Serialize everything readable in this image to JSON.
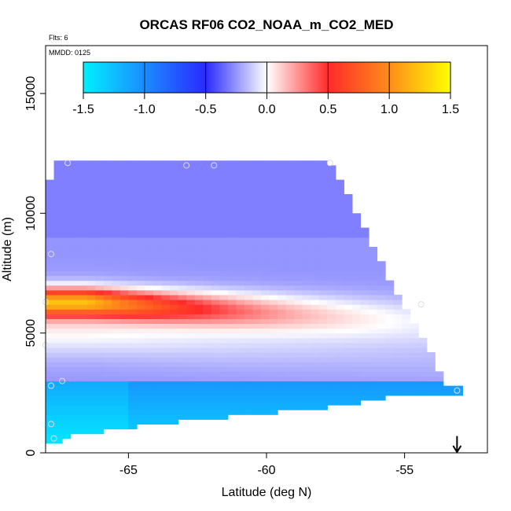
{
  "chart_data": {
    "type": "heatmap",
    "title": "ORCAS RF06 CO2_NOAA_m_CO2_MED",
    "subtitle_flts": "Flts: 6",
    "subtitle_mmdd": "MMDD: 0125",
    "xlabel": "Latitude (deg N)",
    "ylabel": "Altitude (m)",
    "xlim": [
      -68,
      -52
    ],
    "ylim": [
      0,
      17000
    ],
    "x_ticks": [
      -65,
      -60,
      -55
    ],
    "x_tick_labels": [
      "-65",
      "-60",
      "-55"
    ],
    "y_ticks": [
      0,
      5000,
      10000,
      15000
    ],
    "y_tick_labels": [
      "0",
      "5000",
      "10000",
      "15000"
    ],
    "colorbar": {
      "min": -1.5,
      "max": 1.5,
      "ticks": [
        -1.5,
        -1.0,
        -0.5,
        0.0,
        0.5,
        1.0,
        1.5
      ],
      "tick_labels": [
        "-1.5",
        "-1.0",
        "-0.5",
        "0.0",
        "0.5",
        "1.0",
        "1.5"
      ],
      "stops": [
        {
          "v": -1.5,
          "c": "#00f0ff"
        },
        {
          "v": -1.0,
          "c": "#1a8cff"
        },
        {
          "v": -0.5,
          "c": "#2a2aff"
        },
        {
          "v": 0.0,
          "c": "#ffffff"
        },
        {
          "v": 0.5,
          "c": "#ff2a2a"
        },
        {
          "v": 1.0,
          "c": "#ff8c1a"
        },
        {
          "v": 1.5,
          "c": "#ffff00"
        }
      ]
    },
    "field": {
      "lat_range": [
        -68,
        -52.9
      ],
      "alt_range": [
        0,
        12200
      ],
      "lat_step": 0.3,
      "alt_step": 200,
      "upper_boundary": [
        {
          "lat": -68.0,
          "alt": 10500
        },
        {
          "lat": -67.7,
          "alt": 12200
        },
        {
          "lat": -57.7,
          "alt": 12200
        },
        {
          "lat": -56.3,
          "alt": 9000
        },
        {
          "lat": -55.2,
          "alt": 6500
        },
        {
          "lat": -54.5,
          "alt": 5000
        },
        {
          "lat": -53.9,
          "alt": 3800
        },
        {
          "lat": -53.4,
          "alt": 2700
        },
        {
          "lat": -52.9,
          "alt": 2700
        }
      ],
      "lower_boundary": [
        {
          "lat": -68.0,
          "alt": 300
        },
        {
          "lat": -67.5,
          "alt": 500
        },
        {
          "lat": -67.0,
          "alt": 700
        },
        {
          "lat": -65.5,
          "alt": 1000
        },
        {
          "lat": -62.5,
          "alt": 1400
        },
        {
          "lat": -58.5,
          "alt": 1800
        },
        {
          "lat": -55.0,
          "alt": 2400
        },
        {
          "lat": -53.4,
          "alt": 2500
        },
        {
          "lat": -52.9,
          "alt": 2500
        }
      ],
      "features": [
        {
          "name": "red-plume",
          "lat_center": -66.5,
          "alt_center": 6300,
          "lat_scale": 6.0,
          "alt_scale": 550,
          "amplitude": 1.3
        },
        {
          "name": "white-wedge",
          "lat_center": -65.0,
          "alt_center": 5400,
          "lat_scale": 10.0,
          "alt_scale": 1300,
          "amplitude": 0.5
        },
        {
          "name": "boundary-layer-low",
          "alt_top": 3000,
          "amplitude": -1.4
        }
      ],
      "background_value": -0.25
    },
    "sample_points": [
      {
        "lat": -67.2,
        "alt": 12100
      },
      {
        "lat": -62.9,
        "alt": 12000
      },
      {
        "lat": -57.7,
        "alt": 12100
      },
      {
        "lat": -61.9,
        "alt": 12000
      },
      {
        "lat": -67.8,
        "alt": 8300
      },
      {
        "lat": -68.0,
        "alt": 6300
      },
      {
        "lat": -68.0,
        "alt": 4500
      },
      {
        "lat": -67.8,
        "alt": 2800
      },
      {
        "lat": -67.4,
        "alt": 3000
      },
      {
        "lat": -67.8,
        "alt": 1200
      },
      {
        "lat": -67.7,
        "alt": 600
      },
      {
        "lat": -54.4,
        "alt": 6200
      },
      {
        "lat": -53.1,
        "alt": 2600
      }
    ],
    "marker": {
      "type": "down-arrow",
      "lat": -53.1,
      "alt_top": 700,
      "alt_bottom": 0
    }
  }
}
